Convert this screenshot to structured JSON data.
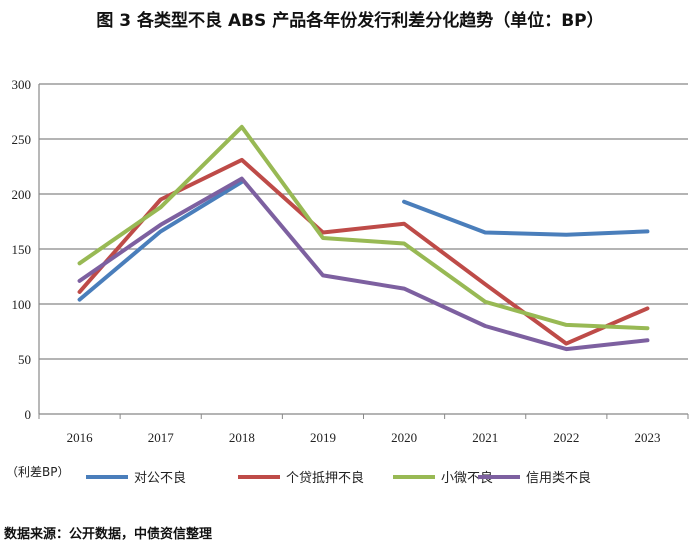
{
  "chart_data": {
    "type": "line",
    "title": "图 3 各类型不良 ABS 产品各年份发行利差分化趋势（单位：BP）",
    "unit_label": "（利差BP）",
    "source": "数据来源：公开数据，中债资信整理",
    "categories": [
      "2016",
      "2017",
      "2018",
      "2019",
      "2020",
      "2021",
      "2022",
      "2023"
    ],
    "ylim": [
      0,
      300
    ],
    "yticks": [
      "0",
      "50",
      "100",
      "150",
      "200",
      "250",
      "300"
    ],
    "grid": true,
    "legend_position": "bottom",
    "series": [
      {
        "name": "对公不良",
        "color": "#4a7ebb",
        "values": [
          104,
          166,
          211,
          null,
          193,
          165,
          163,
          166
        ]
      },
      {
        "name": "个贷抵押不良",
        "color": "#be4b48",
        "values": [
          111,
          195,
          231,
          165,
          173,
          118,
          64,
          96
        ]
      },
      {
        "name": "小微不良",
        "color": "#98b954",
        "values": [
          137,
          188,
          261,
          160,
          155,
          102,
          81,
          78
        ]
      },
      {
        "name": "信用类不良",
        "color": "#7d60a0",
        "values": [
          121,
          172,
          214,
          126,
          114,
          80,
          59,
          67
        ]
      }
    ]
  }
}
